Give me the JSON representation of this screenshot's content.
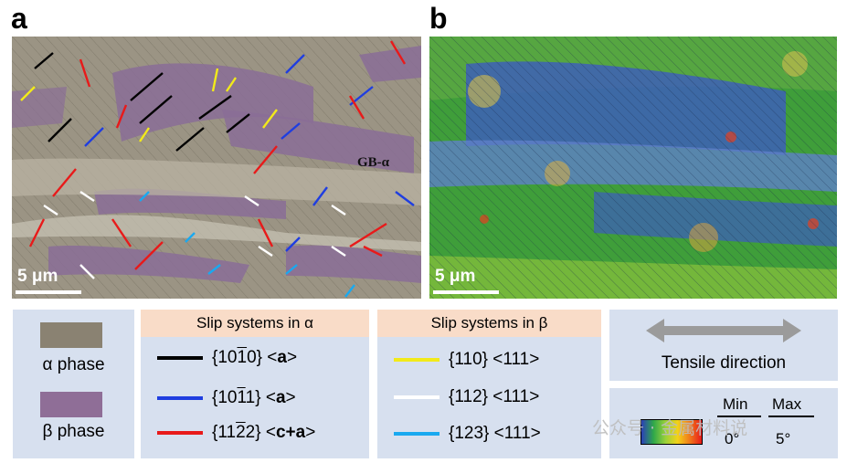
{
  "panels": {
    "a_label": "a",
    "b_label": "b",
    "scale_a": "5 μm",
    "scale_b": "5 μm",
    "gb_label": "GB-α"
  },
  "legend_phase": {
    "alpha": "α phase",
    "beta": "β phase",
    "alpha_color": "#8a8272",
    "beta_color": "#8f6e97"
  },
  "alpha_slip": {
    "header": "Slip systems in α",
    "items": [
      {
        "prefix": "{10",
        "bar": "1",
        "suffix": "0} <",
        "bold": "a",
        "end": ">",
        "color": "#000000"
      },
      {
        "prefix": "{10",
        "bar": "1",
        "suffix": "1} <",
        "bold": "a",
        "end": ">",
        "color": "#1f3ee0"
      },
      {
        "prefix": "{11",
        "bar": "2",
        "suffix": "2} <",
        "bold": "c+a",
        "end": ">",
        "color": "#e81a1a"
      }
    ]
  },
  "beta_slip": {
    "header": "Slip systems in β",
    "items": [
      {
        "label": "{110} <111>",
        "color": "#f2ea1a"
      },
      {
        "label": "{112} <111>",
        "color": "#ffffff"
      },
      {
        "label": "{123} <111>",
        "color": "#19a9f0"
      }
    ]
  },
  "tensile": {
    "label": "Tensile direction"
  },
  "colorbar": {
    "min_label": "Min",
    "max_label": "Max",
    "min_value": "0°",
    "max_value": "5°"
  },
  "watermark": "公众号 · 金属材料说"
}
